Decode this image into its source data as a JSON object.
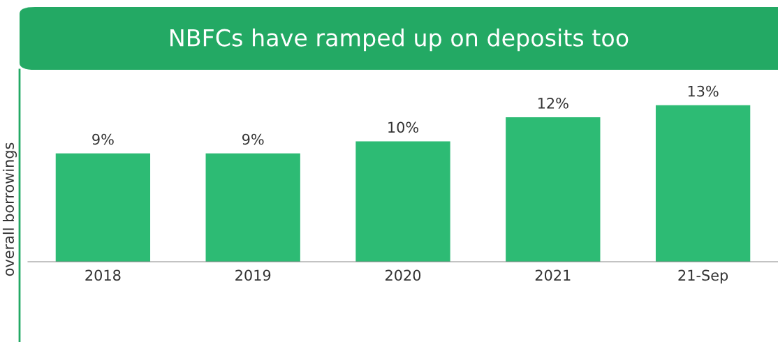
{
  "chart_data": {
    "type": "bar",
    "title": "NBFCs have ramped up on deposits too",
    "ylabel": "overall borrowings",
    "categories": [
      "2018",
      "2019",
      "2020",
      "2021",
      "21-Sep"
    ],
    "values": [
      9,
      9,
      10,
      12,
      13
    ],
    "value_labels": [
      "9%",
      "9%",
      "10%",
      "12%",
      "13%"
    ],
    "color": "#2dbb74",
    "grid": false,
    "legend": false
  }
}
